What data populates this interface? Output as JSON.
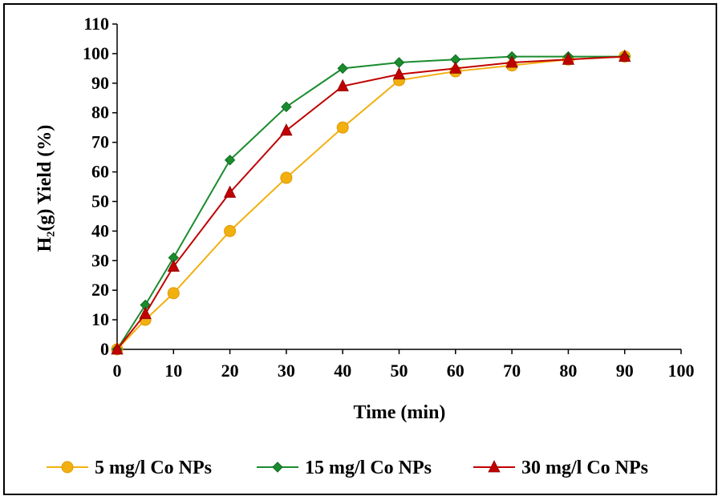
{
  "chart_data": {
    "type": "line",
    "xlabel": "Time (min)",
    "ylabel": "H₂(g) Yield (%)",
    "xlim": [
      0,
      100
    ],
    "ylim": [
      0,
      110
    ],
    "xticks": [
      0,
      10,
      20,
      30,
      40,
      50,
      60,
      70,
      80,
      90,
      100
    ],
    "yticks": [
      0,
      10,
      20,
      30,
      40,
      50,
      60,
      70,
      80,
      90,
      100,
      110
    ],
    "grid": false,
    "legend_position": "bottom",
    "series": [
      {
        "name": "5 mg/l Co NPs",
        "color": "#F2B010",
        "marker": "circle",
        "points": [
          [
            0,
            0
          ],
          [
            5,
            10
          ],
          [
            10,
            19
          ],
          [
            20,
            40
          ],
          [
            30,
            58
          ],
          [
            40,
            75
          ],
          [
            50,
            91
          ],
          [
            60,
            94
          ],
          [
            70,
            96
          ],
          [
            80,
            98
          ],
          [
            90,
            99
          ]
        ]
      },
      {
        "name": "15 mg/l Co NPs",
        "color": "#1A8C2E",
        "marker": "diamond",
        "points": [
          [
            0,
            0
          ],
          [
            5,
            15
          ],
          [
            10,
            31
          ],
          [
            20,
            64
          ],
          [
            30,
            82
          ],
          [
            40,
            95
          ],
          [
            50,
            97
          ],
          [
            60,
            98
          ],
          [
            70,
            99
          ],
          [
            80,
            99
          ],
          [
            90,
            99
          ]
        ]
      },
      {
        "name": "30 mg/l Co NPs",
        "color": "#C00000",
        "marker": "triangle",
        "points": [
          [
            0,
            0
          ],
          [
            5,
            12
          ],
          [
            10,
            28
          ],
          [
            20,
            53
          ],
          [
            30,
            74
          ],
          [
            40,
            89
          ],
          [
            50,
            93
          ],
          [
            60,
            95
          ],
          [
            70,
            97
          ],
          [
            80,
            98
          ],
          [
            90,
            99
          ]
        ]
      }
    ]
  }
}
